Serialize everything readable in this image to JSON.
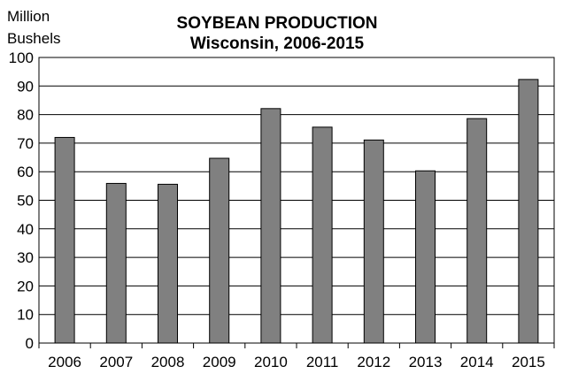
{
  "chart_data": {
    "type": "bar",
    "title": "SOYBEAN PRODUCTION",
    "subtitle": "Wisconsin, 2006-2015",
    "ylabel_lines": [
      "Million",
      "Bushels"
    ],
    "xlabel": "",
    "categories": [
      "2006",
      "2007",
      "2008",
      "2009",
      "2010",
      "2011",
      "2012",
      "2013",
      "2014",
      "2015"
    ],
    "values": [
      72.0,
      55.9,
      55.6,
      64.7,
      82.1,
      75.6,
      71.1,
      60.3,
      78.6,
      92.3
    ],
    "ylim": [
      0,
      100
    ],
    "yticks": [
      0,
      10,
      20,
      30,
      40,
      50,
      60,
      70,
      80,
      90,
      100
    ],
    "grid": true,
    "legend": "none",
    "bar_color": "#808080",
    "bar_edge_color": "#000000"
  }
}
